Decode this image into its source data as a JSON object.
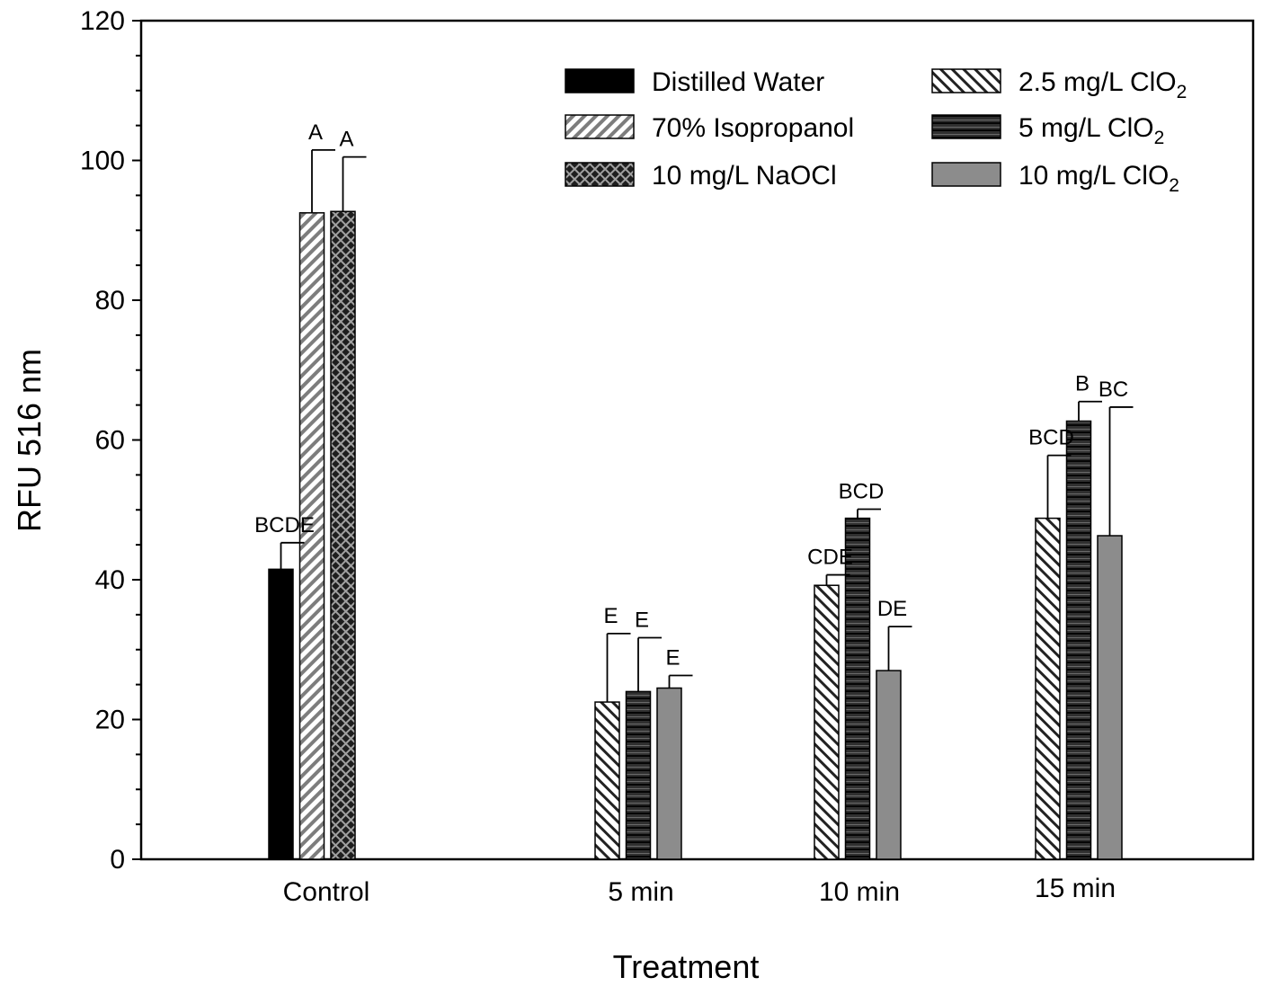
{
  "chart_data": {
    "type": "bar",
    "title": "",
    "xlabel": "Treatment",
    "ylabel": "RFU 516 nm",
    "ylim": [
      0,
      120
    ],
    "yticks": [
      0,
      20,
      40,
      60,
      80,
      100,
      120
    ],
    "ytick_labels": [
      "0",
      "20",
      "40",
      "60",
      "80",
      "100",
      "120"
    ],
    "minor_tick_step": 5,
    "grid": false,
    "legend_position": "top-right",
    "categories": [
      "Control",
      "5 min",
      "10 min",
      "15 min"
    ],
    "series": [
      {
        "name": "Distilled Water",
        "color": "#000000",
        "pattern": "solid",
        "values": [
          41.5,
          null,
          null,
          null
        ],
        "errors": [
          3.8,
          null,
          null,
          null
        ],
        "labels": [
          "BCDE",
          null,
          null,
          null
        ]
      },
      {
        "name": "70% Isopropanol",
        "color": "#9a9a9a",
        "pattern": "hatch-right",
        "values": [
          92.5,
          null,
          null,
          null
        ],
        "errors": [
          9.0,
          null,
          null,
          null
        ],
        "labels": [
          "A",
          null,
          null,
          null
        ]
      },
      {
        "name": "10 mg/L NaOCl",
        "color": "#3a3a3a",
        "pattern": "crosshatch",
        "values": [
          92.7,
          null,
          null,
          null
        ],
        "errors": [
          7.8,
          null,
          null,
          null
        ],
        "labels": [
          "A",
          null,
          null,
          null
        ]
      },
      {
        "name": "2.5 mg/L ClO",
        "name_sub": "2",
        "color": "#ffffff",
        "pattern": "hatch-left",
        "values": [
          null,
          22.5,
          39.2,
          48.8
        ],
        "errors": [
          null,
          9.8,
          1.5,
          9.0
        ],
        "labels": [
          null,
          "E",
          "CDE",
          "BCD"
        ]
      },
      {
        "name": "5 mg/L ClO",
        "name_sub": "2",
        "color": "#333333",
        "pattern": "horizontal",
        "values": [
          null,
          24.0,
          48.8,
          62.7
        ],
        "errors": [
          null,
          7.7,
          1.3,
          2.8
        ],
        "labels": [
          null,
          "E",
          "BCD",
          "B"
        ]
      },
      {
        "name": "10 mg/L ClO",
        "name_sub": "2",
        "color": "#8c8c8c",
        "pattern": "solid",
        "values": [
          null,
          24.5,
          27.0,
          46.3
        ],
        "errors": [
          null,
          1.8,
          6.3,
          18.4
        ],
        "labels": [
          null,
          "E",
          "DE",
          "BC"
        ]
      }
    ]
  }
}
